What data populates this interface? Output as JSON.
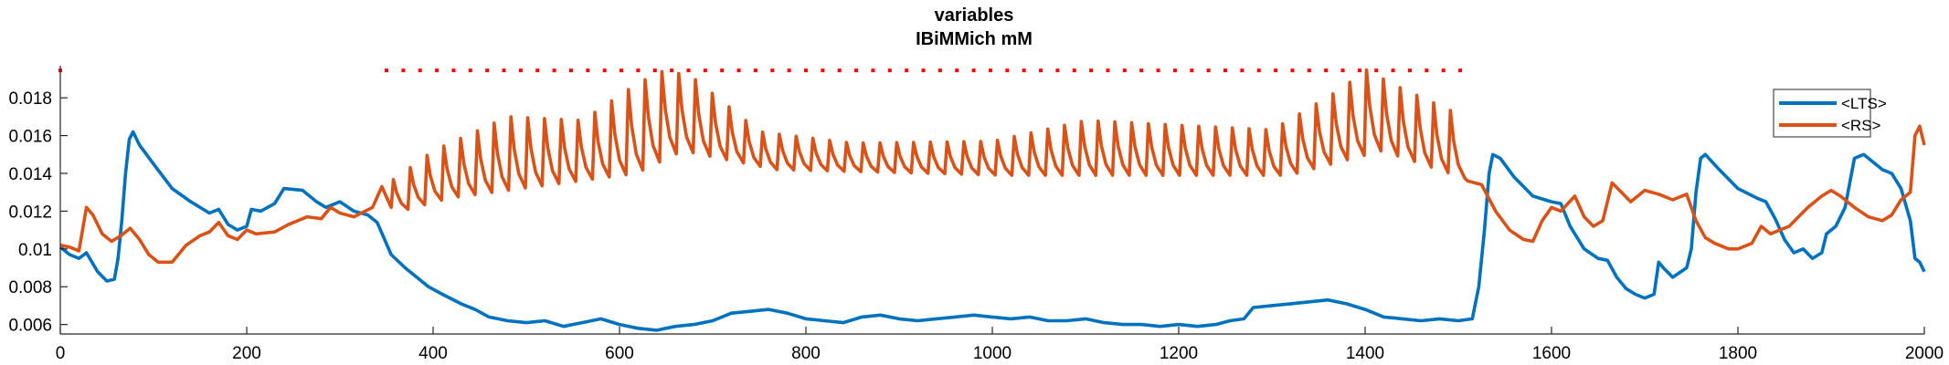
{
  "chart_data": {
    "type": "line",
    "title": "variables",
    "subtitle": "IBiMMich mM",
    "xlabel": "",
    "ylabel": "",
    "xlim": [
      0,
      2000
    ],
    "ylim": [
      0.0055,
      0.0197
    ],
    "x_ticks": [
      "0",
      "200",
      "400",
      "600",
      "800",
      "1000",
      "1200",
      "1400",
      "1600",
      "1800",
      "2000"
    ],
    "y_ticks": [
      "0.006",
      "0.008",
      "0.01",
      "0.012",
      "0.014",
      "0.016",
      "0.018"
    ],
    "grid": false,
    "legend_position": "top-right",
    "series": [
      {
        "name": "<LTS>",
        "color": "#0072BD",
        "points": [
          [
            0,
            0.0101
          ],
          [
            10,
            0.0097
          ],
          [
            20,
            0.0095
          ],
          [
            28,
            0.0098
          ],
          [
            40,
            0.0088
          ],
          [
            50,
            0.0083
          ],
          [
            58,
            0.0084
          ],
          [
            62,
            0.0095
          ],
          [
            66,
            0.0115
          ],
          [
            70,
            0.014
          ],
          [
            74,
            0.0158
          ],
          [
            78,
            0.0162
          ],
          [
            85,
            0.0155
          ],
          [
            100,
            0.0145
          ],
          [
            120,
            0.0132
          ],
          [
            140,
            0.0125
          ],
          [
            160,
            0.0119
          ],
          [
            170,
            0.0121
          ],
          [
            180,
            0.0113
          ],
          [
            190,
            0.011
          ],
          [
            200,
            0.0112
          ],
          [
            205,
            0.0121
          ],
          [
            215,
            0.012
          ],
          [
            230,
            0.0124
          ],
          [
            240,
            0.0132
          ],
          [
            260,
            0.0131
          ],
          [
            275,
            0.0125
          ],
          [
            285,
            0.0122
          ],
          [
            300,
            0.0125
          ],
          [
            315,
            0.012
          ],
          [
            330,
            0.0118
          ],
          [
            340,
            0.0114
          ],
          [
            355,
            0.0097
          ],
          [
            370,
            0.009
          ],
          [
            380,
            0.0086
          ],
          [
            395,
            0.008
          ],
          [
            410,
            0.0076
          ],
          [
            430,
            0.0071
          ],
          [
            445,
            0.0068
          ],
          [
            460,
            0.0064
          ],
          [
            480,
            0.0062
          ],
          [
            500,
            0.0061
          ],
          [
            520,
            0.0062
          ],
          [
            540,
            0.0059
          ],
          [
            560,
            0.0061
          ],
          [
            580,
            0.0063
          ],
          [
            600,
            0.006
          ],
          [
            620,
            0.0058
          ],
          [
            640,
            0.0057
          ],
          [
            660,
            0.0059
          ],
          [
            680,
            0.006
          ],
          [
            700,
            0.0062
          ],
          [
            720,
            0.0066
          ],
          [
            740,
            0.0067
          ],
          [
            760,
            0.0068
          ],
          [
            780,
            0.0066
          ],
          [
            800,
            0.0063
          ],
          [
            820,
            0.0062
          ],
          [
            840,
            0.0061
          ],
          [
            860,
            0.0064
          ],
          [
            880,
            0.0065
          ],
          [
            900,
            0.0063
          ],
          [
            920,
            0.0062
          ],
          [
            940,
            0.0063
          ],
          [
            960,
            0.0064
          ],
          [
            980,
            0.0065
          ],
          [
            1000,
            0.0064
          ],
          [
            1020,
            0.0063
          ],
          [
            1040,
            0.0064
          ],
          [
            1060,
            0.0062
          ],
          [
            1080,
            0.0062
          ],
          [
            1100,
            0.0063
          ],
          [
            1120,
            0.0061
          ],
          [
            1140,
            0.006
          ],
          [
            1160,
            0.006
          ],
          [
            1180,
            0.0059
          ],
          [
            1200,
            0.006
          ],
          [
            1220,
            0.0059
          ],
          [
            1240,
            0.006
          ],
          [
            1255,
            0.0062
          ],
          [
            1270,
            0.0063
          ],
          [
            1280,
            0.0069
          ],
          [
            1300,
            0.007
          ],
          [
            1320,
            0.0071
          ],
          [
            1340,
            0.0072
          ],
          [
            1360,
            0.0073
          ],
          [
            1380,
            0.0071
          ],
          [
            1400,
            0.0068
          ],
          [
            1420,
            0.0064
          ],
          [
            1440,
            0.0063
          ],
          [
            1460,
            0.0062
          ],
          [
            1480,
            0.0063
          ],
          [
            1500,
            0.0062
          ],
          [
            1515,
            0.0063
          ],
          [
            1522,
            0.008
          ],
          [
            1528,
            0.011
          ],
          [
            1533,
            0.014
          ],
          [
            1537,
            0.015
          ],
          [
            1545,
            0.0148
          ],
          [
            1560,
            0.0138
          ],
          [
            1580,
            0.0128
          ],
          [
            1600,
            0.0125
          ],
          [
            1610,
            0.0124
          ],
          [
            1620,
            0.0112
          ],
          [
            1635,
            0.01
          ],
          [
            1650,
            0.0095
          ],
          [
            1660,
            0.0094
          ],
          [
            1670,
            0.0085
          ],
          [
            1680,
            0.0079
          ],
          [
            1690,
            0.0076
          ],
          [
            1700,
            0.0074
          ],
          [
            1710,
            0.0076
          ],
          [
            1715,
            0.0093
          ],
          [
            1720,
            0.009
          ],
          [
            1730,
            0.0085
          ],
          [
            1745,
            0.009
          ],
          [
            1750,
            0.01
          ],
          [
            1755,
            0.013
          ],
          [
            1760,
            0.0148
          ],
          [
            1765,
            0.015
          ],
          [
            1780,
            0.0142
          ],
          [
            1800,
            0.0132
          ],
          [
            1820,
            0.0127
          ],
          [
            1830,
            0.0125
          ],
          [
            1840,
            0.0116
          ],
          [
            1850,
            0.0105
          ],
          [
            1860,
            0.0098
          ],
          [
            1870,
            0.01
          ],
          [
            1880,
            0.0095
          ],
          [
            1890,
            0.0098
          ],
          [
            1895,
            0.0108
          ],
          [
            1905,
            0.0112
          ],
          [
            1915,
            0.0122
          ],
          [
            1925,
            0.0148
          ],
          [
            1935,
            0.015
          ],
          [
            1945,
            0.0146
          ],
          [
            1955,
            0.0142
          ],
          [
            1965,
            0.014
          ],
          [
            1975,
            0.0132
          ],
          [
            1985,
            0.0115
          ],
          [
            1990,
            0.0095
          ],
          [
            1995,
            0.0093
          ],
          [
            2000,
            0.0088
          ]
        ]
      },
      {
        "name": "<RS>",
        "color": "#D95319",
        "points": [
          [
            0,
            0.0102
          ],
          [
            10,
            0.0101
          ],
          [
            20,
            0.0099
          ],
          [
            28,
            0.0122
          ],
          [
            35,
            0.0118
          ],
          [
            45,
            0.0108
          ],
          [
            55,
            0.0104
          ],
          [
            65,
            0.0107
          ],
          [
            75,
            0.0111
          ],
          [
            85,
            0.0105
          ],
          [
            95,
            0.0097
          ],
          [
            105,
            0.0093
          ],
          [
            120,
            0.0093
          ],
          [
            135,
            0.0102
          ],
          [
            150,
            0.0107
          ],
          [
            160,
            0.0109
          ],
          [
            170,
            0.0114
          ],
          [
            180,
            0.0107
          ],
          [
            190,
            0.0105
          ],
          [
            200,
            0.011
          ],
          [
            210,
            0.0108
          ],
          [
            230,
            0.0109
          ],
          [
            245,
            0.0113
          ],
          [
            265,
            0.0117
          ],
          [
            280,
            0.0116
          ],
          [
            290,
            0.0122
          ],
          [
            300,
            0.0119
          ],
          [
            315,
            0.0117
          ],
          [
            335,
            0.0122
          ],
          [
            345,
            0.0133
          ],
          [
            355,
            0.0122
          ]
        ],
        "oscillation": {
          "x_start": 355,
          "x_end": 1510,
          "period": 18,
          "troughs": [
            [
              355,
              0.0121
            ],
            [
              400,
              0.0127
            ],
            [
              600,
              0.014
            ],
            [
              650,
              0.0152
            ],
            [
              750,
              0.0142
            ],
            [
              1000,
              0.0139
            ],
            [
              1300,
              0.0139
            ],
            [
              1400,
              0.0152
            ],
            [
              1510,
              0.0134
            ]
          ],
          "peaks": [
            [
              355,
              0.0136
            ],
            [
              400,
              0.0152
            ],
            [
              480,
              0.017
            ],
            [
              560,
              0.0168
            ],
            [
              620,
              0.0188
            ],
            [
              650,
              0.0195
            ],
            [
              680,
              0.019
            ],
            [
              750,
              0.0162
            ],
            [
              850,
              0.0156
            ],
            [
              1000,
              0.0157
            ],
            [
              1100,
              0.0168
            ],
            [
              1300,
              0.0163
            ],
            [
              1375,
              0.0185
            ],
            [
              1400,
              0.0195
            ],
            [
              1430,
              0.0187
            ],
            [
              1510,
              0.0169
            ]
          ]
        },
        "tail_points": [
          [
            1510,
            0.0136
          ],
          [
            1525,
            0.0134
          ],
          [
            1540,
            0.012
          ],
          [
            1555,
            0.011
          ],
          [
            1570,
            0.0105
          ],
          [
            1580,
            0.0104
          ],
          [
            1590,
            0.0115
          ],
          [
            1600,
            0.0122
          ],
          [
            1610,
            0.012
          ],
          [
            1625,
            0.0128
          ],
          [
            1635,
            0.0117
          ],
          [
            1645,
            0.0112
          ],
          [
            1655,
            0.0115
          ],
          [
            1665,
            0.0135
          ],
          [
            1675,
            0.013
          ],
          [
            1685,
            0.0125
          ],
          [
            1700,
            0.0131
          ],
          [
            1715,
            0.0129
          ],
          [
            1730,
            0.0126
          ],
          [
            1745,
            0.0129
          ],
          [
            1755,
            0.0115
          ],
          [
            1765,
            0.0106
          ],
          [
            1775,
            0.0103
          ],
          [
            1790,
            0.01
          ],
          [
            1800,
            0.01
          ],
          [
            1815,
            0.0103
          ],
          [
            1825,
            0.0112
          ],
          [
            1835,
            0.0108
          ],
          [
            1845,
            0.011
          ],
          [
            1855,
            0.0112
          ],
          [
            1865,
            0.0117
          ],
          [
            1875,
            0.0122
          ],
          [
            1890,
            0.0128
          ],
          [
            1900,
            0.0131
          ],
          [
            1910,
            0.0128
          ],
          [
            1925,
            0.0122
          ],
          [
            1940,
            0.0117
          ],
          [
            1955,
            0.0115
          ],
          [
            1965,
            0.0118
          ],
          [
            1975,
            0.0126
          ],
          [
            1985,
            0.013
          ],
          [
            1990,
            0.016
          ],
          [
            1995,
            0.0165
          ],
          [
            2000,
            0.0155
          ]
        ]
      }
    ],
    "spike_markers": {
      "color": "#FF0000",
      "y": 0.01945,
      "x_values": [
        0,
        350,
        368,
        386,
        404,
        422,
        440,
        458,
        476,
        494,
        512,
        530,
        548,
        566,
        584,
        602,
        620,
        638,
        656,
        674,
        692,
        710,
        728,
        746,
        764,
        782,
        800,
        818,
        836,
        854,
        872,
        890,
        908,
        926,
        944,
        962,
        980,
        998,
        1016,
        1034,
        1052,
        1070,
        1088,
        1106,
        1124,
        1142,
        1160,
        1178,
        1196,
        1214,
        1232,
        1250,
        1268,
        1286,
        1304,
        1322,
        1340,
        1358,
        1376,
        1394,
        1412,
        1430,
        1448,
        1466,
        1484,
        1502
      ]
    }
  }
}
